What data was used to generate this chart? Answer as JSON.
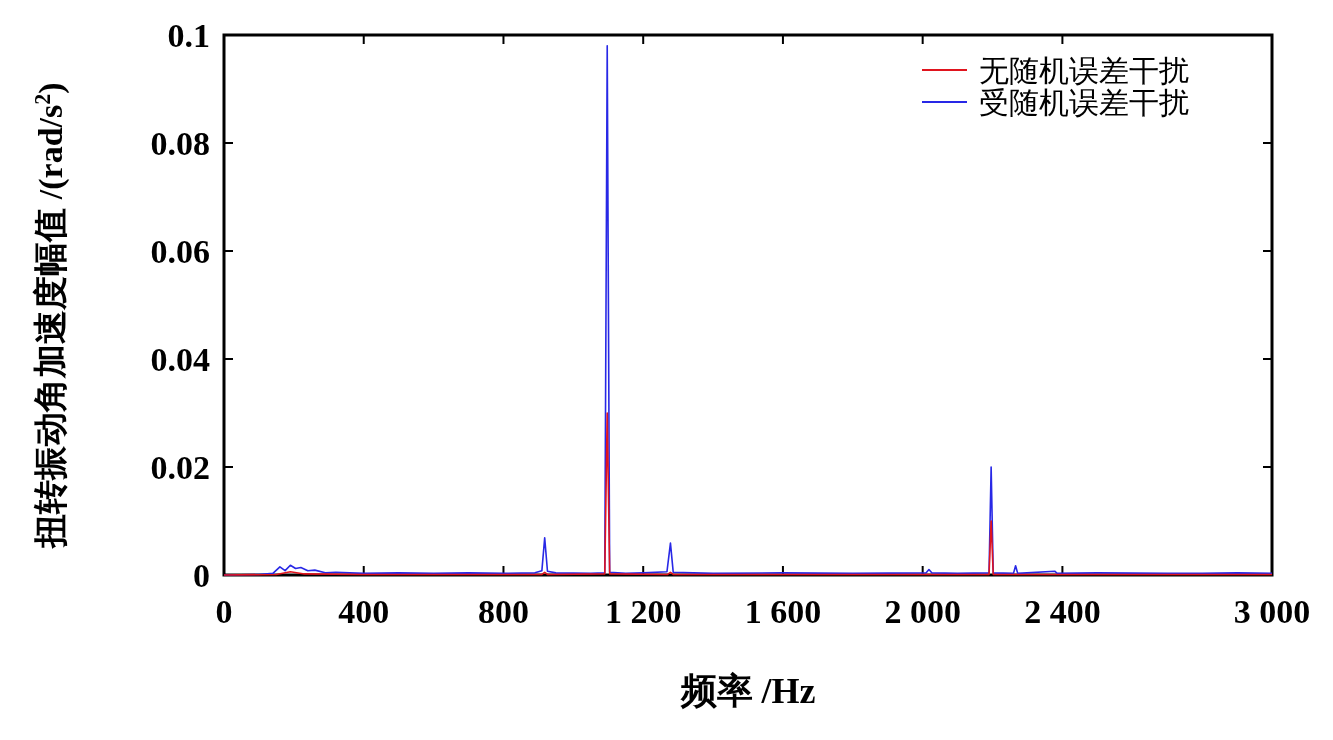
{
  "chart_data": {
    "type": "line",
    "xlabel": "频率 /Hz",
    "ylabel": "扭转振动角加速度幅值 /(rad/s$^{2}$)",
    "xlim": [
      0,
      3000
    ],
    "xticks": [
      0,
      400,
      800,
      {
        "value": 1200,
        "label": "1 200"
      },
      {
        "value": 1600,
        "label": "1 600"
      },
      {
        "value": 2000,
        "label": "2 000"
      },
      {
        "value": 2400,
        "label": "2 400"
      },
      {
        "value": 3000,
        "label": "3 000"
      }
    ],
    "ylim": [
      0,
      0.1
    ],
    "yticks": [
      0,
      0.02,
      0.04,
      0.06,
      0.08,
      0.1
    ],
    "grid": false,
    "legend": "top right",
    "series": [
      {
        "name": "无随机误差干扰",
        "color": "#e0141e",
        "x": [
          0,
          150,
          190,
          230,
          400,
          910,
          918,
          926,
          1090,
          1097,
          1104,
          1270,
          1278,
          1286,
          2190,
          2196,
          2202,
          2800,
          3000
        ],
        "values": [
          0,
          0.0001,
          0.0006,
          0.0002,
          0.0001,
          0.0001,
          0.0005,
          0.0001,
          0.0002,
          0.03,
          0.0002,
          0.0001,
          0.0005,
          0.0001,
          0.0001,
          0.01,
          0.0001,
          0.0001,
          0.0001
        ]
      },
      {
        "name": "受随机误差干扰",
        "color": "#2828e6",
        "x": [
          0,
          100,
          140,
          160,
          175,
          190,
          205,
          220,
          240,
          260,
          290,
          320,
          400,
          500,
          600,
          700,
          800,
          890,
          910,
          918,
          926,
          950,
          1050,
          1090,
          1097,
          1104,
          1150,
          1200,
          1268,
          1278,
          1286,
          1400,
          1600,
          1800,
          2010,
          2018,
          2026,
          2100,
          2190,
          2196,
          2202,
          2260,
          2266,
          2272,
          2378,
          2385,
          2500,
          2700,
          2800,
          2900,
          3000
        ],
        "values": [
          0,
          0.0001,
          0.0003,
          0.0015,
          0.0008,
          0.0018,
          0.0012,
          0.0014,
          0.0008,
          0.0009,
          0.0004,
          0.0005,
          0.0003,
          0.0004,
          0.0003,
          0.0004,
          0.0003,
          0.0004,
          0.0008,
          0.0069,
          0.0007,
          0.0004,
          0.0003,
          0.0004,
          0.098,
          0.0005,
          0.0003,
          0.0004,
          0.0006,
          0.0059,
          0.0005,
          0.0003,
          0.0004,
          0.0003,
          0.0004,
          0.001,
          0.0004,
          0.0003,
          0.0004,
          0.02,
          0.0004,
          0.0003,
          0.0017,
          0.0003,
          0.0007,
          0.0003,
          0.0004,
          0.0003,
          0.0003,
          0.0004,
          0.0003
        ]
      }
    ]
  }
}
